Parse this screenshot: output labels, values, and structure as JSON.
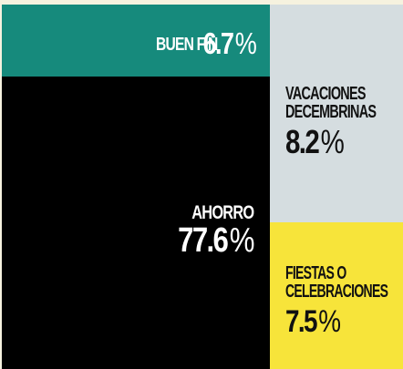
{
  "chart_data": {
    "type": "treemap",
    "unit": "%",
    "items": [
      {
        "name": "BUEN FIN",
        "label_lines": [
          "BUEN FIN"
        ],
        "value": 6.7,
        "value_text": "6.7",
        "color": "#168a7c",
        "text_color": "#ffffff"
      },
      {
        "name": "AHORRO",
        "label_lines": [
          "AHORRO"
        ],
        "value": 77.6,
        "value_text": "77.6",
        "color": "#000000",
        "text_color": "#ffffff"
      },
      {
        "name": "VACACIONES DECEMBRINAS",
        "label_lines": [
          "VACACIONES",
          "DECEMBRINAS"
        ],
        "value": 8.2,
        "value_text": "8.2",
        "color": "#d5dde0",
        "text_color": "#111111"
      },
      {
        "name": "FIESTAS O CELEBRACIONES",
        "label_lines": [
          "FIESTAS O",
          "CELEBRACIONES"
        ],
        "value": 7.5,
        "value_text": "7.5",
        "color": "#f7e43a",
        "text_color": "#111111"
      }
    ]
  }
}
